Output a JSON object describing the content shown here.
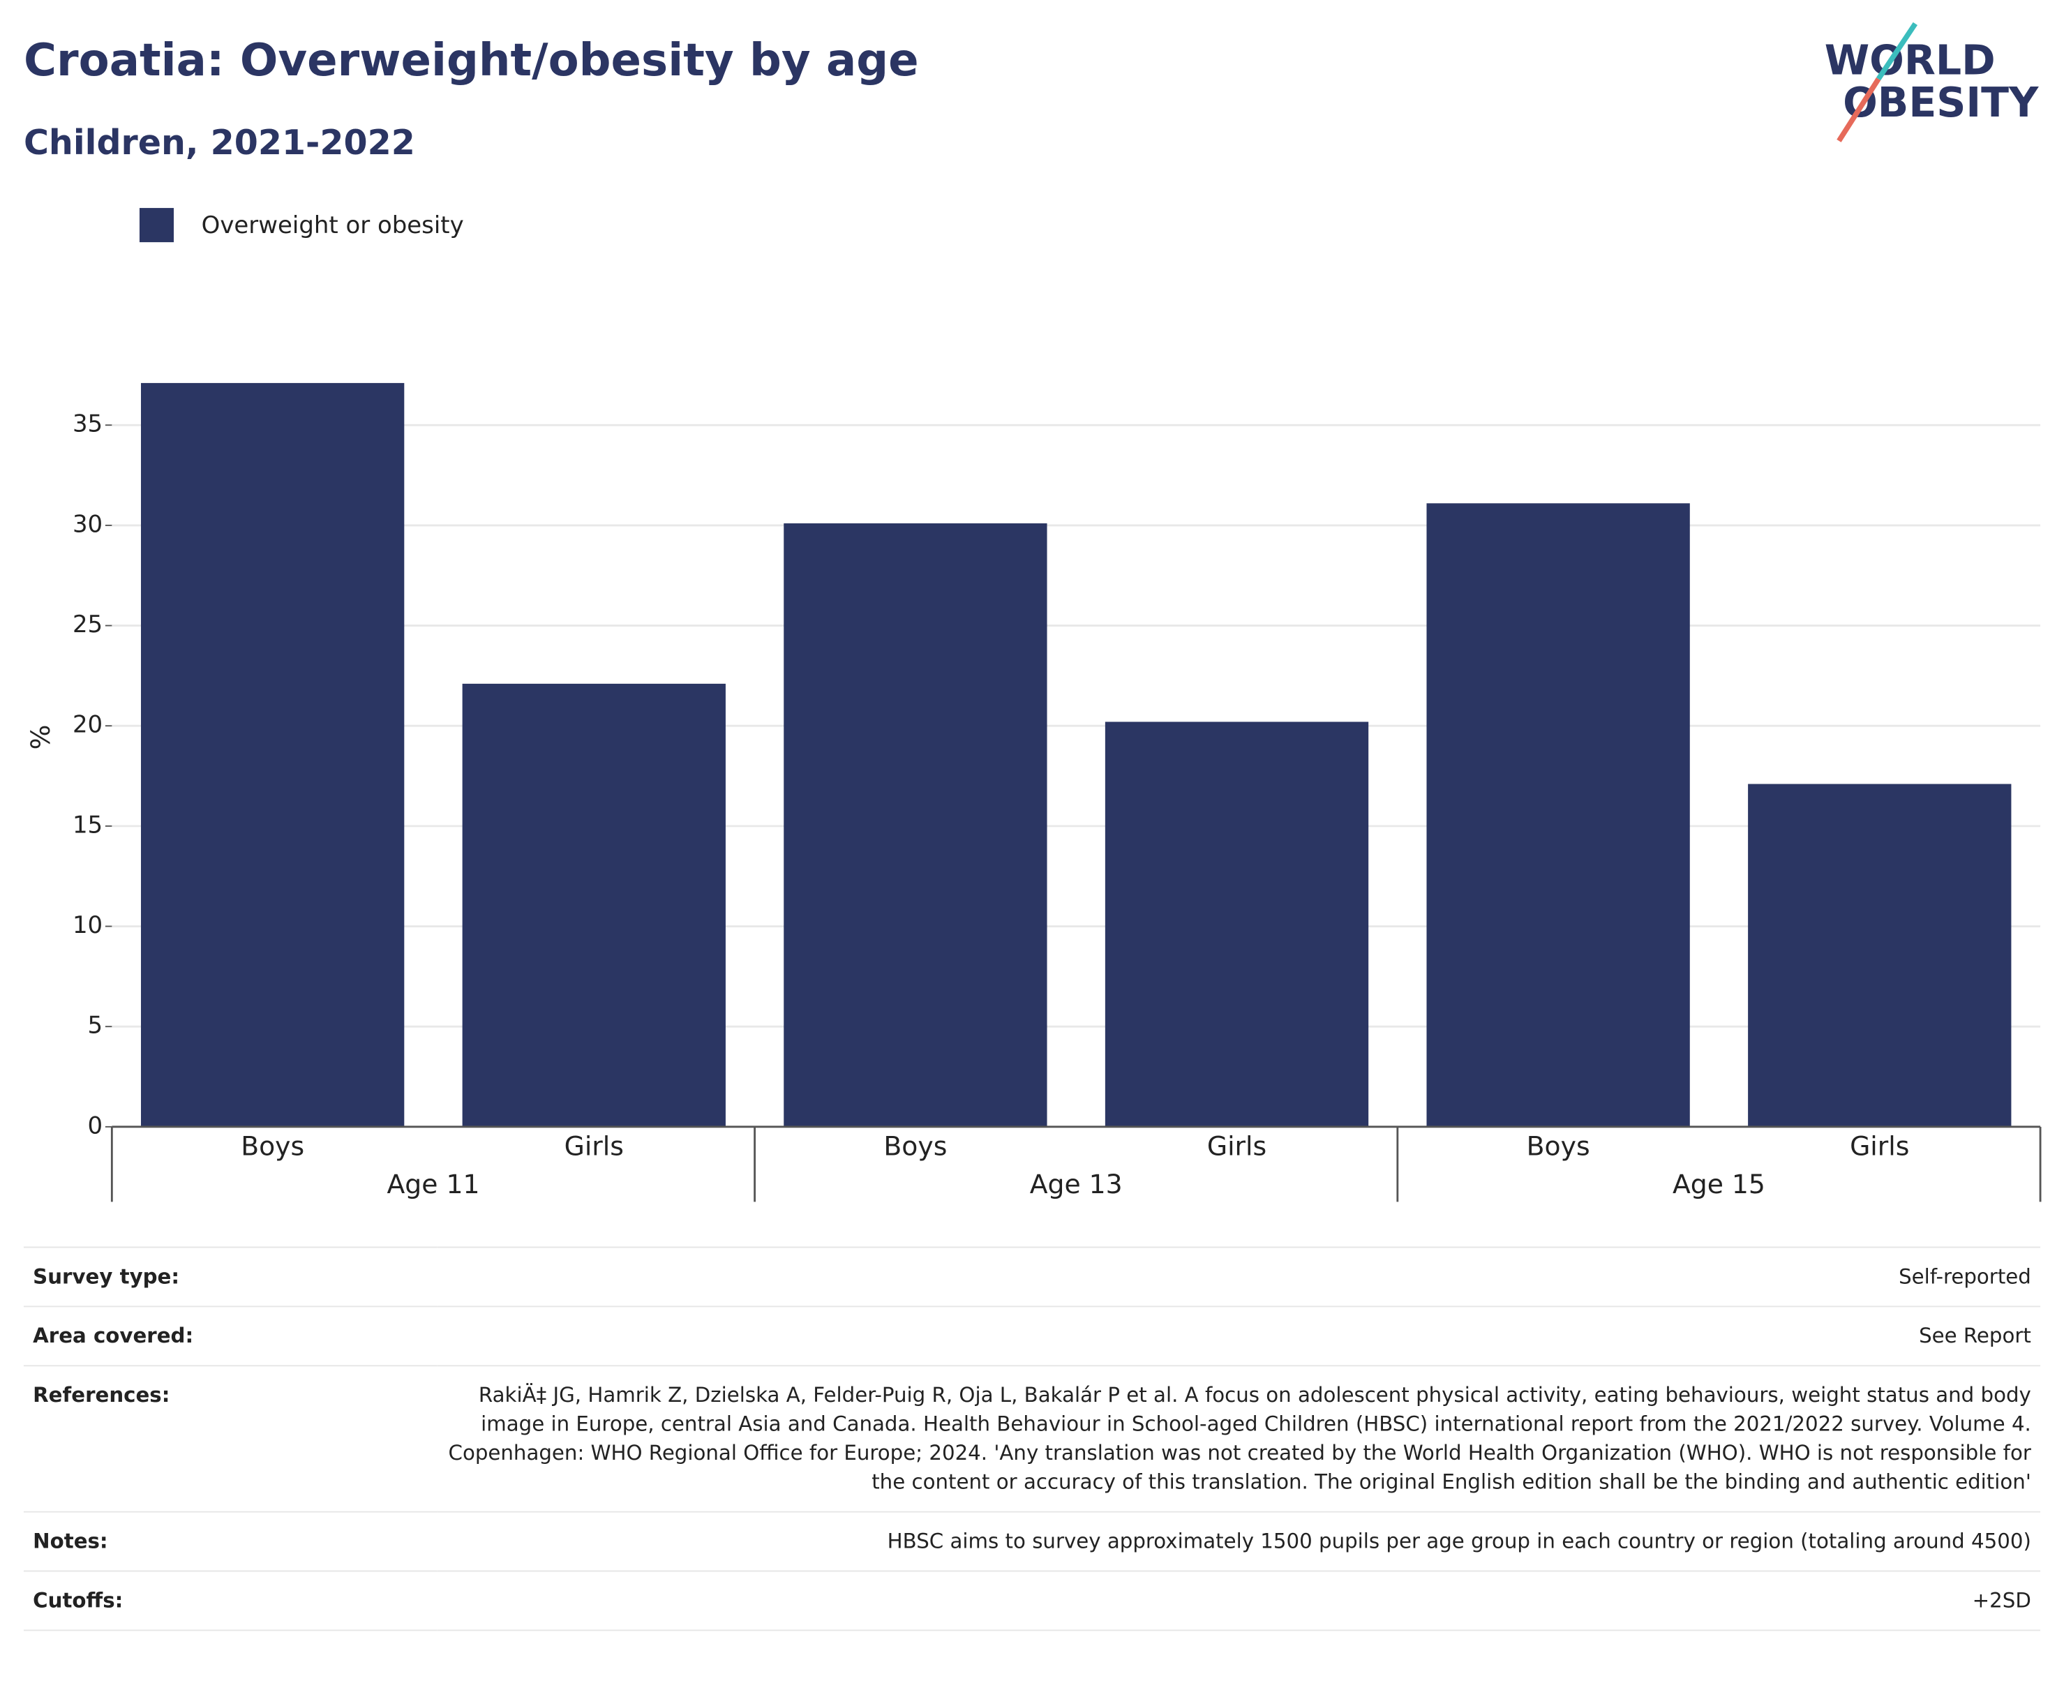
{
  "chart_data": {
    "type": "bar",
    "title": "Croatia: Overweight/obesity by age",
    "subtitle": "Children, 2021-2022",
    "ylabel": "%",
    "categories": [
      "Boys",
      "Girls",
      "Boys",
      "Girls",
      "Boys",
      "Girls"
    ],
    "groups": [
      "Age 11",
      "Age 13",
      "Age 15"
    ],
    "series": [
      {
        "name": "Overweight or obesity",
        "color": "#2b3663",
        "values": [
          37.1,
          22.1,
          30.1,
          20.2,
          31.1,
          17.1
        ]
      }
    ],
    "ylim": [
      0,
      39
    ],
    "yticks": [
      0,
      5,
      10,
      15,
      20,
      25,
      30,
      35
    ],
    "grid": true,
    "legend": "top-left"
  },
  "logo": [
    "WORLD",
    "OBESITY"
  ],
  "table": {
    "rows": [
      [
        "Survey type:",
        "Self-reported"
      ],
      [
        "Area covered:",
        "See Report"
      ],
      [
        "References:",
        "RakiÄ‡ JG, Hamrik Z, Dzielska A, Felder-Puig R, Oja L, Bakalár P et al. A focus on adolescent physical activity, eating behaviours, weight status and body image in Europe, central Asia and Canada. Health Behaviour in School-aged Children (HBSC) international report from the 2021/2022 survey. Volume 4. Copenhagen: WHO Regional Office for Europe; 2024. 'Any translation was not created by the World Health Organization (WHO). WHO is not responsible for the content or accuracy of this translation. The original English edition shall be the binding and authentic edition'"
      ],
      [
        "Notes:",
        "HBSC aims to survey approximately 1500 pupils per age group in each country or region (totaling around 4500)"
      ],
      [
        "Cutoffs:",
        "+2SD"
      ]
    ]
  }
}
